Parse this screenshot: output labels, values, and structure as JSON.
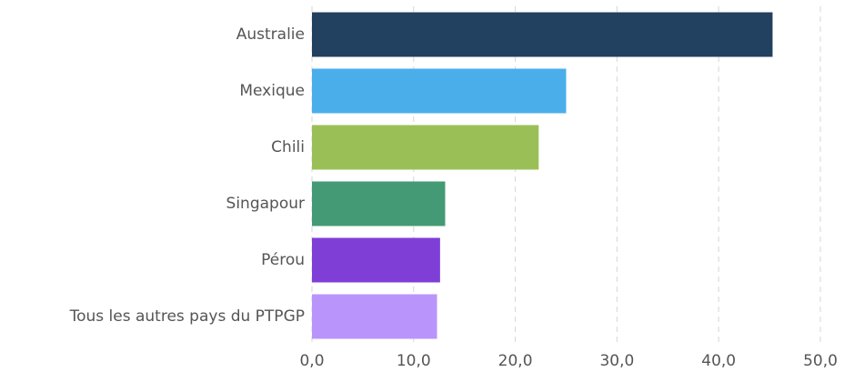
{
  "chart_data": {
    "type": "barh",
    "categories": [
      "Australie",
      "Mexique",
      "Chili",
      "Singapour",
      "Pérou",
      "Tous les autres pays du PTPGP"
    ],
    "values": [
      45.3,
      25.0,
      22.3,
      13.1,
      12.6,
      12.3
    ],
    "colors": [
      "#22405f",
      "#4aaeeb",
      "#9bbf57",
      "#449a74",
      "#7f3fd7",
      "#b995fb"
    ],
    "xlim": [
      0,
      50
    ],
    "xticks": [
      {
        "value": 0,
        "label": "0,0"
      },
      {
        "value": 10,
        "label": "10,0"
      },
      {
        "value": 20,
        "label": "20,0"
      },
      {
        "value": 30,
        "label": "30,0"
      },
      {
        "value": 40,
        "label": "40,0"
      },
      {
        "value": 50,
        "label": "50,0"
      }
    ],
    "grid": true
  }
}
